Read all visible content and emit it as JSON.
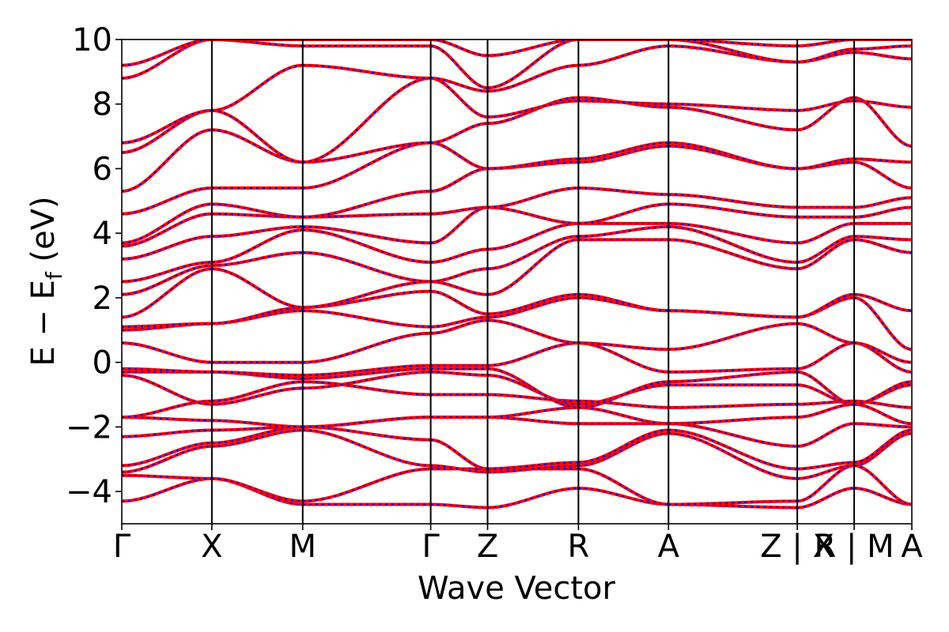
{
  "chart_data": {
    "type": "line",
    "title": "",
    "xlabel": "Wave Vector",
    "ylabel_parts": [
      "E − E",
      "f",
      " (eV)"
    ],
    "ylim": [
      -5,
      10
    ],
    "yticks": [
      -4,
      -2,
      0,
      2,
      4,
      6,
      8,
      10
    ],
    "ytick_labels": [
      "−4",
      "−2",
      "0",
      "2",
      "4",
      "6",
      "8",
      "10"
    ],
    "kpath": [
      {
        "label": "Γ",
        "k": 0.0
      },
      {
        "label": "X",
        "k": 0.114
      },
      {
        "label": "M",
        "k": 0.229
      },
      {
        "label": "Γ",
        "k": 0.391
      },
      {
        "label": "Z",
        "k": 0.463
      },
      {
        "label": "R",
        "k": 0.578
      },
      {
        "label": "A",
        "k": 0.692
      },
      {
        "label": "Z | X",
        "k": 0.855
      },
      {
        "label": "R | M",
        "k": 0.927
      },
      {
        "label": "A",
        "k": 1.0
      }
    ],
    "segments": [
      {
        "from": 0.0,
        "to": 0.114
      },
      {
        "from": 0.114,
        "to": 0.229
      },
      {
        "from": 0.229,
        "to": 0.391
      },
      {
        "from": 0.391,
        "to": 0.463
      },
      {
        "from": 0.463,
        "to": 0.578
      },
      {
        "from": 0.578,
        "to": 0.692
      },
      {
        "from": 0.692,
        "to": 0.855
      },
      {
        "from": 0.855,
        "to": 0.927
      },
      {
        "from": 0.927,
        "to": 1.0
      }
    ],
    "series": [
      {
        "values": [
          [
            -4.3,
            -3.6,
            -4.4,
            -4.4,
            -4.5,
            -3.9,
            -4.4,
            -4.5,
            -3.9,
            -4.4
          ]
        ],
        "color": "#ff0000",
        "overlay_color": "#0000ff"
      },
      {
        "values": [
          [
            -3.5,
            -3.6,
            -4.3,
            -3.3,
            -3.3,
            -3.3,
            -4.4,
            -4.3,
            -3.2,
            -4.4
          ]
        ],
        "color": "#ff0000",
        "overlay_color": "#0000ff"
      },
      {
        "values": [
          [
            -3.4,
            -2.6,
            -2.1,
            -3.2,
            -3.4,
            -3.2,
            -2.2,
            -3.6,
            -3.2,
            -2.2
          ]
        ],
        "color": "#ff0000",
        "overlay_color": "#0000ff"
      },
      {
        "values": [
          [
            -3.2,
            -2.5,
            -2.0,
            -2.4,
            -3.3,
            -3.1,
            -2.1,
            -3.3,
            -3.1,
            -2.1
          ]
        ],
        "color": "#ff0000",
        "overlay_color": "#0000ff"
      },
      {
        "values": [
          [
            -2.3,
            -2.1,
            -2.0,
            -1.7,
            -1.7,
            -1.9,
            -1.9,
            -2.6,
            -1.9,
            -2.0
          ]
        ],
        "color": "#ff0000",
        "overlay_color": "#0000ff"
      },
      {
        "values": [
          [
            -1.7,
            -1.8,
            -2.0,
            -1.7,
            -1.7,
            -1.4,
            -1.9,
            -1.7,
            -1.3,
            -1.9
          ]
        ],
        "color": "#ff0000",
        "overlay_color": "#0000ff"
      },
      {
        "values": [
          [
            -1.7,
            -1.2,
            -0.6,
            -1.0,
            -1.0,
            -1.2,
            -1.4,
            -1.3,
            -1.2,
            -1.4
          ]
        ],
        "color": "#ff0000",
        "overlay_color": "#0000ff"
      },
      {
        "values": [
          [
            -0.4,
            -1.3,
            -0.8,
            -0.3,
            -0.4,
            -1.3,
            -0.7,
            -0.7,
            -1.3,
            -0.7
          ]
        ],
        "color": "#ff0000",
        "overlay_color": "#0000ff"
      },
      {
        "values": [
          [
            -0.3,
            -0.3,
            -0.5,
            -0.2,
            -0.2,
            -1.4,
            -0.6,
            -0.3,
            -1.3,
            -0.6
          ]
        ],
        "color": "#ff0000",
        "overlay_color": "#0000ff"
      },
      {
        "values": [
          [
            -0.2,
            -0.3,
            -0.4,
            -0.1,
            -0.1,
            0.6,
            -0.3,
            -0.2,
            0.6,
            -0.3
          ]
        ],
        "color": "#ff0000",
        "overlay_color": "#0000ff"
      },
      {
        "values": [
          [
            0.6,
            0.0,
            0.0,
            0.9,
            1.3,
            0.6,
            0.4,
            1.2,
            0.6,
            0.0
          ]
        ],
        "color": "#ff0000",
        "overlay_color": "#0000ff"
      },
      {
        "values": [
          [
            1.0,
            1.2,
            1.6,
            1.1,
            1.4,
            2.0,
            1.6,
            1.4,
            2.0,
            0.4
          ]
        ],
        "color": "#ff0000",
        "overlay_color": "#0000ff"
      },
      {
        "values": [
          [
            1.1,
            1.2,
            1.7,
            2.2,
            1.5,
            2.1,
            1.6,
            1.4,
            2.1,
            1.6
          ]
        ],
        "color": "#ff0000",
        "overlay_color": "#0000ff"
      },
      {
        "values": [
          [
            1.4,
            2.9,
            1.7,
            2.5,
            2.1,
            3.8,
            3.8,
            2.9,
            3.8,
            3.4
          ]
        ],
        "color": "#ff0000",
        "overlay_color": "#0000ff"
      },
      {
        "values": [
          [
            2.1,
            3.0,
            3.4,
            2.5,
            2.9,
            3.9,
            4.2,
            3.1,
            3.9,
            3.8
          ]
        ],
        "color": "#ff0000",
        "overlay_color": "#0000ff"
      },
      {
        "values": [
          [
            2.5,
            3.1,
            4.1,
            3.1,
            3.5,
            4.3,
            4.3,
            3.7,
            4.3,
            4.3
          ]
        ],
        "color": "#ff0000",
        "overlay_color": "#0000ff"
      },
      {
        "values": [
          [
            3.2,
            3.9,
            4.2,
            3.7,
            4.8,
            4.3,
            4.9,
            4.5,
            4.5,
            4.8
          ]
        ],
        "color": "#ff0000",
        "overlay_color": "#0000ff"
      },
      {
        "values": [
          [
            3.6,
            4.6,
            4.5,
            4.6,
            4.8,
            5.4,
            5.2,
            4.8,
            4.8,
            5.1
          ]
        ],
        "color": "#ff0000",
        "overlay_color": "#0000ff"
      },
      {
        "values": [
          [
            3.7,
            4.9,
            4.5,
            5.3,
            6.0,
            6.2,
            6.7,
            6.0,
            6.2,
            5.4
          ]
        ],
        "color": "#ff0000",
        "overlay_color": "#0000ff"
      },
      {
        "values": [
          [
            4.6,
            5.4,
            5.4,
            6.8,
            6.0,
            6.3,
            6.8,
            6.0,
            6.3,
            6.2
          ]
        ],
        "color": "#ff0000",
        "overlay_color": "#0000ff"
      },
      {
        "values": [
          [
            5.3,
            7.2,
            6.2,
            6.8,
            7.4,
            8.2,
            7.9,
            7.2,
            8.2,
            6.7
          ]
        ],
        "color": "#ff0000",
        "overlay_color": "#0000ff"
      },
      {
        "values": [
          [
            6.5,
            7.8,
            6.2,
            8.8,
            7.6,
            8.1,
            8.0,
            7.8,
            8.1,
            7.9
          ]
        ],
        "color": "#ff0000",
        "overlay_color": "#0000ff"
      },
      {
        "values": [
          [
            6.8,
            7.8,
            9.2,
            8.8,
            8.4,
            9.2,
            9.8,
            9.3,
            9.6,
            9.4
          ]
        ],
        "color": "#ff0000",
        "overlay_color": "#0000ff"
      },
      {
        "values": [
          [
            8.8,
            10.0,
            9.8,
            9.8,
            8.5,
            10.0,
            10.0,
            9.3,
            9.7,
            9.8
          ]
        ],
        "color": "#ff0000",
        "overlay_color": "#0000ff"
      },
      {
        "values": [
          [
            9.2,
            10.0,
            10.0,
            10.0,
            9.5,
            10.0,
            10.0,
            9.8,
            10.0,
            10.0
          ]
        ],
        "color": "#ff0000",
        "overlay_color": "#0000ff"
      }
    ],
    "grid": false,
    "legend": "none"
  }
}
